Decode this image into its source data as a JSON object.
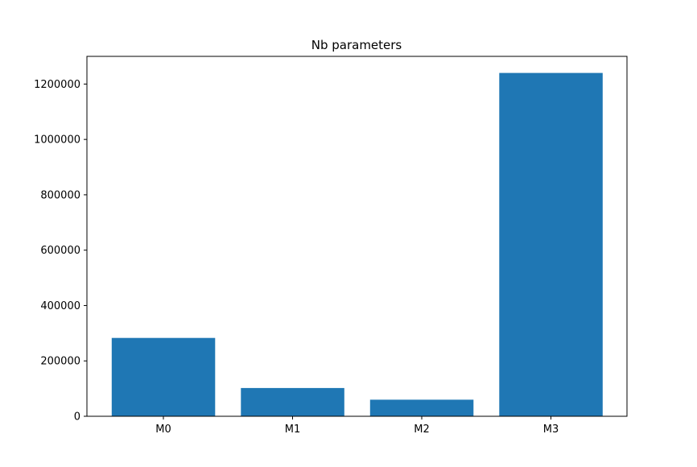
{
  "chart_data": {
    "type": "bar",
    "title": "Nb parameters",
    "xlabel": "",
    "ylabel": "",
    "categories": [
      "M0",
      "M1",
      "M2",
      "M3"
    ],
    "values": [
      283000,
      102000,
      60000,
      1240000
    ],
    "ylim": [
      0,
      1300000
    ],
    "yticks": [
      0,
      200000,
      400000,
      600000,
      800000,
      1000000,
      1200000
    ],
    "ytick_labels": [
      "0",
      "200000",
      "400000",
      "600000",
      "800000",
      "1000000",
      "1200000"
    ],
    "bar_color": "#1f77b4",
    "grid": false,
    "legend": false
  }
}
